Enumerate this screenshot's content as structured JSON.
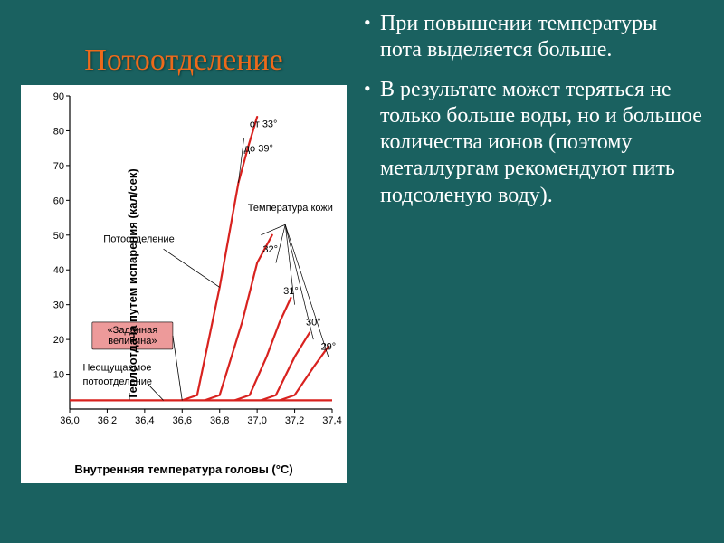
{
  "background_color": "#1a6160",
  "title": {
    "text": "Потоотделение",
    "color": "#ed6a1b",
    "fontsize": 34
  },
  "bullets": [
    "При повышении температуры пота выделяется больше.",
    "В результате может теряться не только больше воды, но и большое количества ионов (поэтому металлургам рекомендуют пить подсоленую воду)."
  ],
  "chart": {
    "type": "line",
    "background_color": "#ffffff",
    "axis_color": "#000000",
    "curve_color": "#d8221f",
    "curve_width": 2.2,
    "xlabel": "Внутренняя температура головы (°C)",
    "ylabel": "Теплоотдача путем испарения (кал/сек)",
    "label_fontsize": 13,
    "tick_fontsize": 11,
    "xlim": [
      36.0,
      37.4
    ],
    "ylim": [
      0,
      90
    ],
    "xticks": [
      36.0,
      36.2,
      36.4,
      36.6,
      36.8,
      37.0,
      37.2,
      37.4
    ],
    "xtick_labels": [
      "36,0",
      "36,2",
      "36,4",
      "36,6",
      "36,8",
      "37,0",
      "37,2",
      "37,4"
    ],
    "yticks": [
      10,
      20,
      30,
      40,
      50,
      60,
      70,
      80,
      90
    ],
    "curves": [
      [
        [
          36.6,
          2.5
        ],
        [
          36.68,
          4
        ],
        [
          36.8,
          35
        ],
        [
          36.9,
          65
        ],
        [
          36.95,
          75
        ],
        [
          37.0,
          84
        ]
      ],
      [
        [
          36.72,
          2.5
        ],
        [
          36.8,
          4
        ],
        [
          36.92,
          25
        ],
        [
          37.0,
          42
        ],
        [
          37.08,
          50
        ]
      ],
      [
        [
          36.88,
          2.5
        ],
        [
          36.96,
          4
        ],
        [
          37.05,
          15
        ],
        [
          37.12,
          25
        ],
        [
          37.18,
          32
        ]
      ],
      [
        [
          37.02,
          2.5
        ],
        [
          37.1,
          4
        ],
        [
          37.2,
          15
        ],
        [
          37.28,
          22
        ]
      ],
      [
        [
          37.12,
          2.5
        ],
        [
          37.2,
          4
        ],
        [
          37.3,
          12
        ],
        [
          37.38,
          18
        ]
      ]
    ],
    "baseline": [
      [
        36.0,
        2.5
      ],
      [
        37.4,
        2.5
      ]
    ],
    "annotations": {
      "skin_temp_label": "Температура кожи",
      "sweating_label": "Потоотделение",
      "insensible_label": "Неощущаемое потоотделение",
      "setpoint_label": "«Заданная величина»",
      "temperatures": [
        "от 33°",
        "до 39°",
        "32°",
        "31°",
        "30°",
        "29°"
      ]
    }
  }
}
